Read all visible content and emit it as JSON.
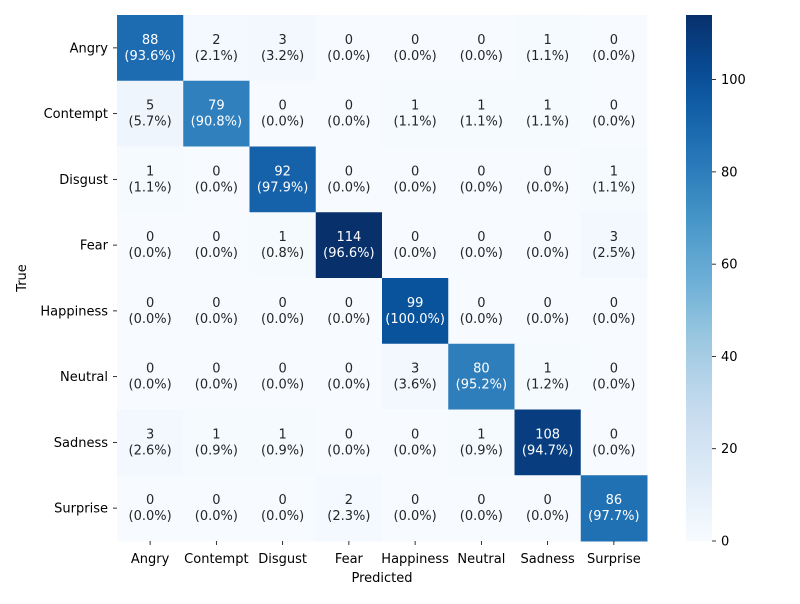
{
  "chart_data": {
    "type": "heatmap",
    "xlabel": "Predicted",
    "ylabel": "True",
    "x_categories": [
      "Angry",
      "Contempt",
      "Disgust",
      "Fear",
      "Happiness",
      "Neutral",
      "Sadness",
      "Surprise"
    ],
    "y_categories": [
      "Angry",
      "Contempt",
      "Disgust",
      "Fear",
      "Happiness",
      "Neutral",
      "Sadness",
      "Surprise"
    ],
    "values": [
      [
        88,
        2,
        3,
        0,
        0,
        0,
        1,
        0
      ],
      [
        5,
        79,
        0,
        0,
        1,
        1,
        1,
        0
      ],
      [
        1,
        0,
        92,
        0,
        0,
        0,
        0,
        1
      ],
      [
        0,
        0,
        1,
        114,
        0,
        0,
        0,
        3
      ],
      [
        0,
        0,
        0,
        0,
        99,
        0,
        0,
        0
      ],
      [
        0,
        0,
        0,
        0,
        3,
        80,
        1,
        0
      ],
      [
        3,
        1,
        1,
        0,
        0,
        1,
        108,
        0
      ],
      [
        0,
        0,
        0,
        2,
        0,
        0,
        0,
        86
      ]
    ],
    "percentages": [
      [
        "93.6%",
        "2.1%",
        "3.2%",
        "0.0%",
        "0.0%",
        "0.0%",
        "1.1%",
        "0.0%"
      ],
      [
        "5.7%",
        "90.8%",
        "0.0%",
        "0.0%",
        "1.1%",
        "1.1%",
        "1.1%",
        "0.0%"
      ],
      [
        "1.1%",
        "0.0%",
        "97.9%",
        "0.0%",
        "0.0%",
        "0.0%",
        "0.0%",
        "1.1%"
      ],
      [
        "0.0%",
        "0.0%",
        "0.8%",
        "96.6%",
        "0.0%",
        "0.0%",
        "0.0%",
        "2.5%"
      ],
      [
        "0.0%",
        "0.0%",
        "0.0%",
        "0.0%",
        "100.0%",
        "0.0%",
        "0.0%",
        "0.0%"
      ],
      [
        "0.0%",
        "0.0%",
        "0.0%",
        "0.0%",
        "3.6%",
        "95.2%",
        "1.2%",
        "0.0%"
      ],
      [
        "2.6%",
        "0.9%",
        "0.9%",
        "0.0%",
        "0.0%",
        "0.9%",
        "94.7%",
        "0.0%"
      ],
      [
        "0.0%",
        "0.0%",
        "0.0%",
        "2.3%",
        "0.0%",
        "0.0%",
        "0.0%",
        "97.7%"
      ]
    ],
    "colorbar": {
      "range": [
        0,
        114
      ],
      "ticks": [
        0,
        20,
        40,
        60,
        80,
        100
      ],
      "colormap": "Blues",
      "low_color": "#f7fbff",
      "high_color": "#08306b"
    },
    "grid": false,
    "legend": "colorbar-right"
  }
}
